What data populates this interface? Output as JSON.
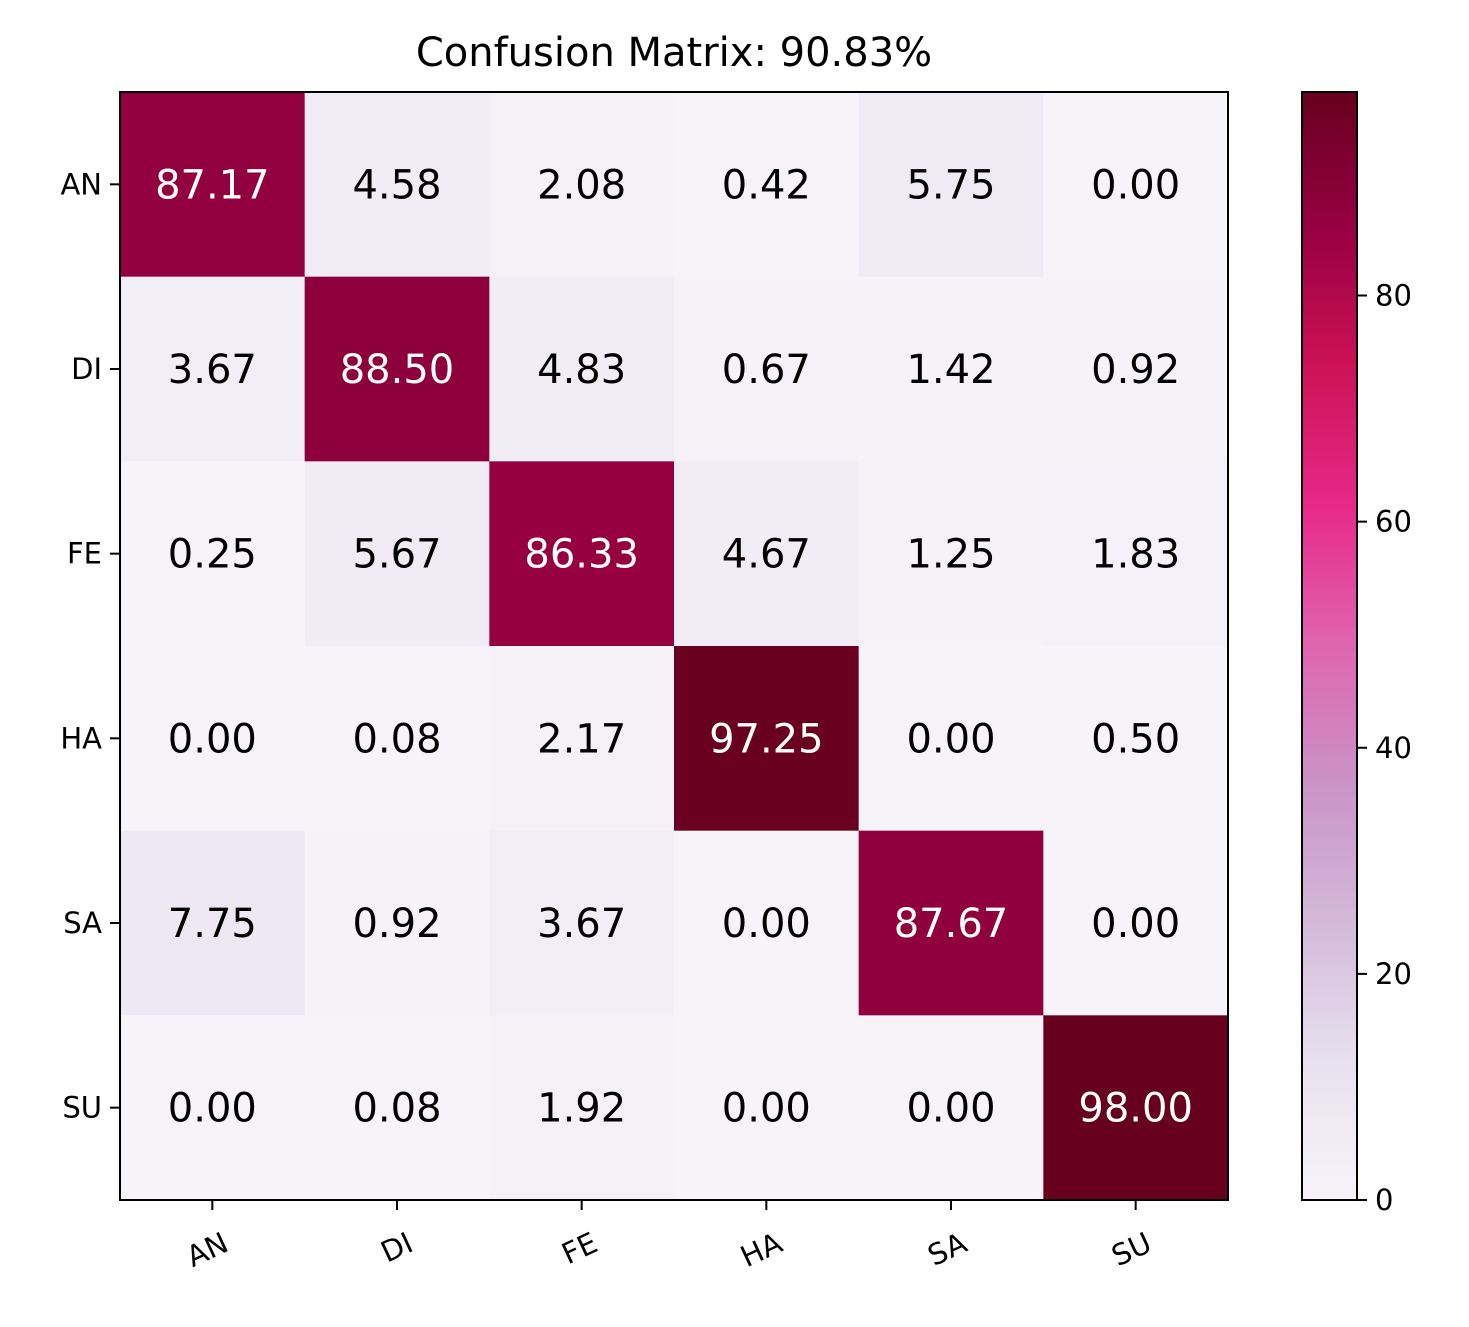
{
  "chart_data": {
    "type": "heatmap",
    "title": "Confusion Matrix: 90.83%",
    "xlabel": "",
    "ylabel": "",
    "x_categories": [
      "AN",
      "DI",
      "FE",
      "HA",
      "SA",
      "SU"
    ],
    "y_categories": [
      "AN",
      "DI",
      "FE",
      "HA",
      "SA",
      "SU"
    ],
    "values": [
      [
        87.17,
        4.58,
        2.08,
        0.42,
        5.75,
        0.0
      ],
      [
        3.67,
        88.5,
        4.83,
        0.67,
        1.42,
        0.92
      ],
      [
        0.25,
        5.67,
        86.33,
        4.67,
        1.25,
        1.83
      ],
      [
        0.0,
        0.08,
        2.17,
        97.25,
        0.0,
        0.5
      ],
      [
        7.75,
        0.92,
        3.67,
        0.0,
        87.67,
        0.0
      ],
      [
        0.0,
        0.08,
        1.92,
        0.0,
        0.0,
        98.0
      ]
    ],
    "value_format": "0.00",
    "colorbar": {
      "range": [
        0,
        98
      ],
      "ticks": [
        0,
        20,
        40,
        60,
        80
      ],
      "colormap": "PuRd"
    },
    "x_tick_rotation": "angled"
  }
}
